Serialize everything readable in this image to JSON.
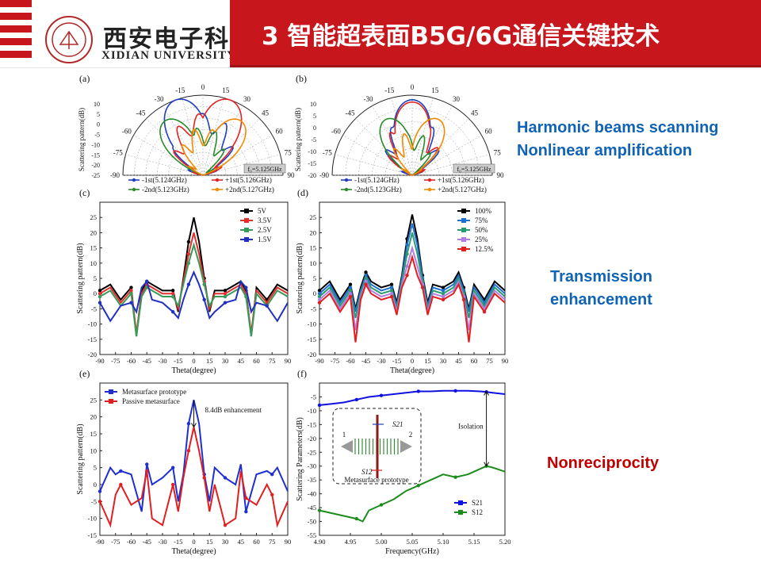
{
  "header": {
    "university_cn": "西安电子科技大学",
    "university_en": "XIDIAN UNIVERSITY",
    "title": "3 智能超表面B5G/6G通信关键技术",
    "brand_color": "#c8161d"
  },
  "annotations": {
    "harmonic_line1": "Harmonic beams scanning",
    "harmonic_line2": "Nonlinear amplification",
    "transmission_line1": "Transmission",
    "transmission_line2": "enhancement",
    "nonreciprocity": "Nonreciprocity"
  },
  "chart_data": [
    {
      "panel": "(a)",
      "type": "polar",
      "r_ticks": [
        "10",
        "5",
        "0",
        "-5",
        "-10",
        "-15",
        "-20",
        "-25"
      ],
      "angle_ticks": [
        "-90",
        "-75",
        "-60",
        "-45",
        "-30",
        "-15",
        "0",
        "15",
        "30",
        "45",
        "60",
        "75",
        "90"
      ],
      "ylabel": "Scattering pattern(dB)",
      "note": "f₀=5.125GHz",
      "series": [
        {
          "name": "-1st(5.124GHz)",
          "color": "#1f3fbf",
          "peak_angle": -20,
          "peak_db": 10
        },
        {
          "name": "+1st(5.126GHz)",
          "color": "#e02424",
          "peak_angle": 20,
          "peak_db": 10
        },
        {
          "name": "-2nd(5.123GHz)",
          "color": "#2a8a2a",
          "peak_angle": -35,
          "peak_db": 4
        },
        {
          "name": "+2nd(5.127GHz)",
          "color": "#f08a00",
          "peak_angle": 35,
          "peak_db": 4
        }
      ]
    },
    {
      "panel": "(b)",
      "type": "polar",
      "r_ticks": [
        "10",
        "5",
        "0",
        "-5",
        "-10",
        "-15",
        "-20"
      ],
      "angle_ticks": [
        "-90",
        "-75",
        "-60",
        "-45",
        "-30",
        "-15",
        "0",
        "15",
        "30",
        "45",
        "60",
        "75",
        "90"
      ],
      "ylabel": "Scattering pattern(dB)",
      "note": "f₀=5.125GHz",
      "series": [
        {
          "name": "-1st(5.124GHz)",
          "color": "#1f3fbf",
          "peak_angle": 0,
          "peak_db": 8
        },
        {
          "name": "+1st(5.126GHz)",
          "color": "#e02424",
          "peak_angle": 0,
          "peak_db": 7
        },
        {
          "name": "-2nd(5.123GHz)",
          "color": "#2a8a2a",
          "peak_angle": -25,
          "peak_db": 2
        },
        {
          "name": "+2nd(5.127GHz)",
          "color": "#f08a00",
          "peak_angle": 25,
          "peak_db": 2
        }
      ]
    },
    {
      "panel": "(c)",
      "type": "line",
      "xlabel": "Theta(degree)",
      "ylabel": "Scattering pattern(dB)",
      "xlim": [
        -90,
        90
      ],
      "ylim": [
        -20,
        30
      ],
      "x_ticks": [
        "-90",
        "-75",
        "-60",
        "-45",
        "-30",
        "-15",
        "0",
        "15",
        "30",
        "45",
        "60",
        "75",
        "90"
      ],
      "y_ticks": [
        "25",
        "20",
        "15",
        "10",
        "5",
        "0",
        "-5",
        "-10",
        "-15",
        "-20"
      ],
      "x": [
        -90,
        -80,
        -70,
        -60,
        -55,
        -50,
        -45,
        -40,
        -30,
        -20,
        -15,
        -10,
        -5,
        0,
        5,
        10,
        15,
        20,
        30,
        40,
        45,
        50,
        55,
        60,
        70,
        80,
        90
      ],
      "series": [
        {
          "name": "5V",
          "color": "#000000",
          "values": [
            1,
            3,
            -2,
            2,
            -14,
            1,
            4,
            3,
            1,
            1,
            -6,
            5,
            17,
            25,
            17,
            5,
            -6,
            1,
            1,
            3,
            4,
            1,
            -14,
            2,
            -2,
            3,
            1
          ]
        },
        {
          "name": "3.5V",
          "color": "#e03030",
          "values": [
            0,
            2,
            -3,
            1,
            -13,
            0,
            3,
            2,
            0,
            0,
            -5,
            4,
            13,
            20,
            13,
            4,
            -5,
            0,
            0,
            2,
            3,
            0,
            -13,
            1,
            -3,
            2,
            0
          ]
        },
        {
          "name": "2.5V",
          "color": "#3a9a5a",
          "values": [
            -1,
            1,
            -4,
            0,
            -14,
            -1,
            2,
            1,
            -1,
            -1,
            -4,
            3,
            10,
            16,
            10,
            3,
            -4,
            -1,
            -1,
            1,
            2,
            -1,
            -14,
            0,
            -4,
            1,
            -1
          ]
        },
        {
          "name": "1.5V",
          "color": "#2030c0",
          "values": [
            -3,
            -9,
            -4,
            -3,
            -6,
            2,
            4,
            -2,
            -3,
            -6,
            -8,
            -2,
            3,
            7,
            3,
            -2,
            -8,
            -6,
            -3,
            -2,
            4,
            2,
            -6,
            -3,
            -4,
            -9,
            -3
          ]
        }
      ]
    },
    {
      "panel": "(d)",
      "type": "line",
      "xlabel": "Theta(degree)",
      "ylabel": "Scattering pattern(dB)",
      "xlim": [
        -90,
        90
      ],
      "ylim": [
        -20,
        30
      ],
      "x_ticks": [
        "-90",
        "-75",
        "-60",
        "-45",
        "-30",
        "-15",
        "0",
        "15",
        "30",
        "45",
        "60",
        "75",
        "90"
      ],
      "y_ticks": [
        "25",
        "20",
        "15",
        "10",
        "5",
        "0",
        "-5",
        "-10",
        "-15",
        "-20"
      ],
      "x": [
        -90,
        -80,
        -70,
        -60,
        -55,
        -50,
        -45,
        -40,
        -30,
        -20,
        -15,
        -10,
        -5,
        0,
        5,
        10,
        15,
        20,
        30,
        40,
        45,
        50,
        55,
        60,
        70,
        80,
        90
      ],
      "series": [
        {
          "name": "100%",
          "color": "#000000",
          "values": [
            1,
            4,
            -2,
            3,
            -5,
            2,
            7,
            4,
            2,
            3,
            -3,
            6,
            18,
            26,
            18,
            6,
            -3,
            3,
            2,
            4,
            7,
            2,
            -5,
            3,
            -2,
            4,
            1
          ]
        },
        {
          "name": "75%",
          "color": "#1f6fd0",
          "values": [
            0,
            3,
            -3,
            2,
            -6,
            1,
            6,
            3,
            1,
            2,
            -4,
            5,
            16,
            23,
            16,
            5,
            -4,
            2,
            1,
            3,
            6,
            1,
            -6,
            2,
            -3,
            3,
            0
          ]
        },
        {
          "name": "50%",
          "color": "#2a9a70",
          "values": [
            -1,
            2,
            -4,
            1,
            -8,
            0,
            5,
            2,
            0,
            1,
            -5,
            4,
            13,
            20,
            13,
            4,
            -5,
            1,
            0,
            2,
            5,
            0,
            -8,
            1,
            -4,
            2,
            -1
          ]
        },
        {
          "name": "25%",
          "color": "#b27de0",
          "values": [
            -2,
            1,
            -5,
            0,
            -12,
            -1,
            4,
            1,
            -1,
            0,
            -6,
            3,
            9,
            15,
            9,
            3,
            -6,
            0,
            -1,
            1,
            4,
            -1,
            -12,
            0,
            -5,
            1,
            -2
          ]
        },
        {
          "name": "12.5%",
          "color": "#e02020",
          "values": [
            -3,
            0,
            -6,
            -1,
            -16,
            -2,
            3,
            0,
            -2,
            -1,
            -7,
            2,
            6,
            12,
            6,
            2,
            -7,
            -1,
            -2,
            0,
            3,
            -2,
            -16,
            -1,
            -6,
            0,
            -3
          ]
        }
      ]
    },
    {
      "panel": "(e)",
      "type": "line",
      "xlabel": "Theta(degree)",
      "ylabel": "Scattering pattern(dB)",
      "xlim": [
        -90,
        90
      ],
      "ylim": [
        -15,
        30
      ],
      "x_ticks": [
        "-90",
        "-75",
        "-60",
        "-45",
        "-30",
        "-15",
        "0",
        "15",
        "30",
        "45",
        "60",
        "75",
        "90"
      ],
      "y_ticks": [
        "25",
        "20",
        "15",
        "10",
        "5",
        "0",
        "-5",
        "-10",
        "-15"
      ],
      "annotation": "8.4dB enhancement",
      "x": [
        -90,
        -80,
        -75,
        -70,
        -60,
        -50,
        -45,
        -40,
        -30,
        -20,
        -15,
        -10,
        -5,
        0,
        5,
        10,
        15,
        20,
        30,
        40,
        45,
        50,
        60,
        70,
        75,
        80,
        90
      ],
      "series": [
        {
          "name": "Metasurface prototype",
          "color": "#1f2fd0",
          "values": [
            -2,
            5,
            3,
            4,
            3,
            -8,
            6,
            0,
            2,
            5,
            -5,
            3,
            18,
            25,
            18,
            3,
            -5,
            5,
            2,
            0,
            6,
            -8,
            3,
            4,
            3,
            5,
            -2
          ]
        },
        {
          "name": "Passive metasurface",
          "color": "#e02020",
          "values": [
            -5,
            -12,
            -3,
            0,
            -6,
            -4,
            4,
            -10,
            -12,
            0,
            -8,
            2,
            10,
            17,
            10,
            2,
            -8,
            0,
            -12,
            -10,
            4,
            -4,
            -6,
            0,
            -3,
            -12,
            -5
          ]
        }
      ]
    },
    {
      "panel": "(f)",
      "type": "line",
      "xlabel": "Frequency(GHz)",
      "ylabel": "Scattering Parameters(dB)",
      "xlim": [
        4.9,
        5.2
      ],
      "ylim": [
        -55,
        0
      ],
      "x_ticks": [
        "4.90",
        "4.95",
        "5.00",
        "5.05",
        "5.10",
        "5.15",
        "5.20"
      ],
      "y_ticks": [
        "-5",
        "-10",
        "-15",
        "-20",
        "-25",
        "-30",
        "-35",
        "-40",
        "-45",
        "-50",
        "-55"
      ],
      "annotation": "Isolation",
      "inset": {
        "label": "Metasurface prototype",
        "port1": "1",
        "port2": "2",
        "s21": "S21",
        "s12": "S12"
      },
      "x": [
        4.9,
        4.92,
        4.94,
        4.96,
        4.97,
        4.98,
        5.0,
        5.02,
        5.04,
        5.06,
        5.08,
        5.1,
        5.12,
        5.14,
        5.16,
        5.17,
        5.18,
        5.2
      ],
      "series": [
        {
          "name": "S21",
          "color": "#1010e0",
          "values": [
            -8,
            -7.5,
            -7,
            -6,
            -5.5,
            -5,
            -4.5,
            -4,
            -3.5,
            -3,
            -3,
            -2.8,
            -2.8,
            -2.8,
            -3,
            -3.2,
            -3.5,
            -4
          ]
        },
        {
          "name": "S12",
          "color": "#1c8c1c",
          "values": [
            -46,
            -47,
            -48,
            -49,
            -50,
            -46,
            -44,
            -42,
            -39,
            -37,
            -35,
            -33,
            -34,
            -33,
            -31,
            -30,
            -30.5,
            -32
          ]
        }
      ]
    }
  ]
}
